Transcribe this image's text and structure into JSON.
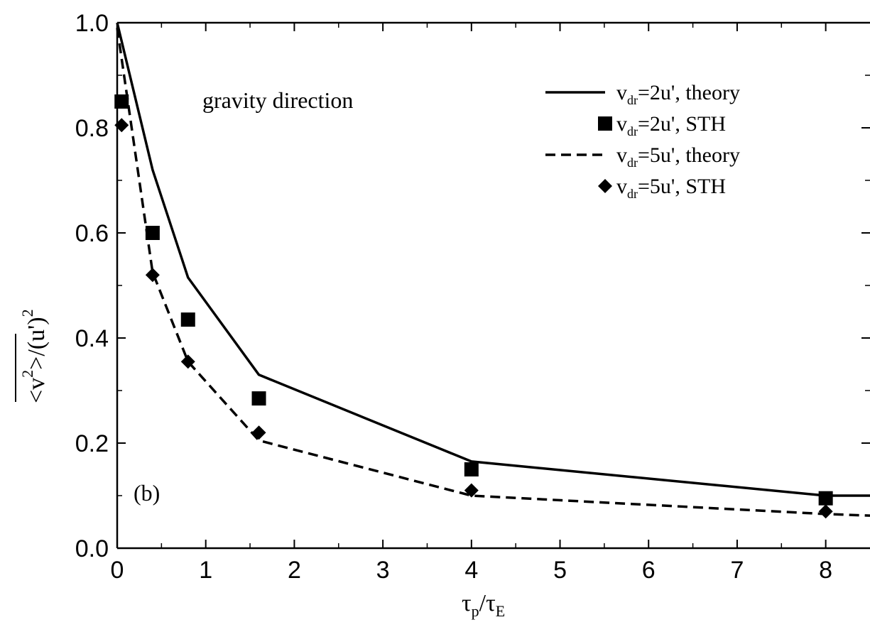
{
  "chart_data": {
    "type": "line",
    "annotation_direction": "gravity direction",
    "panel_label": "(b)",
    "xlabel": {
      "main": "τ",
      "sub1": "p",
      "slash": "/τ",
      "sub2": "E"
    },
    "ylabel": {
      "open": "<v",
      "exp1": "2",
      "close": ">/(u')",
      "exp2": "2"
    },
    "xlim": [
      0,
      8.5
    ],
    "ylim": [
      0,
      1.0
    ],
    "xticks": [
      0,
      1,
      2,
      3,
      4,
      5,
      6,
      7,
      8
    ],
    "yticks": [
      0.0,
      0.2,
      0.4,
      0.6,
      0.8,
      1.0
    ],
    "ytick_labels": [
      "0.0",
      "0.2",
      "0.4",
      "0.6",
      "0.8",
      "1.0"
    ],
    "grid": false,
    "legend_position": "top-right",
    "series": [
      {
        "name": "vdr=2u', theory",
        "legend": {
          "pre": "v",
          "sub": "dr",
          "post": "=2u', theory"
        },
        "style": "solid-line",
        "x": [
          0.0,
          0.4,
          0.8,
          1.6,
          4.0,
          8.0,
          8.5
        ],
        "y": [
          1.0,
          0.72,
          0.515,
          0.33,
          0.165,
          0.1,
          0.1
        ]
      },
      {
        "name": "vdr=2u', STH",
        "legend": {
          "pre": "v",
          "sub": "dr",
          "post": "=2u', STH"
        },
        "style": "square-marker",
        "x": [
          0.05,
          0.4,
          0.8,
          1.6,
          4.0,
          8.0
        ],
        "y": [
          0.85,
          0.6,
          0.435,
          0.285,
          0.15,
          0.095
        ]
      },
      {
        "name": "vdr=5u', theory",
        "legend": {
          "pre": "v",
          "sub": "dr",
          "post": "=5u', theory"
        },
        "style": "dashed-line",
        "x": [
          0.0,
          0.4,
          0.8,
          1.6,
          4.0,
          8.0,
          8.5
        ],
        "y": [
          0.99,
          0.525,
          0.355,
          0.205,
          0.1,
          0.065,
          0.062
        ]
      },
      {
        "name": "vdr=5u', STH",
        "legend": {
          "pre": "v",
          "sub": "dr",
          "post": "=5u', STH"
        },
        "style": "diamond-marker",
        "x": [
          0.05,
          0.4,
          0.8,
          1.6,
          4.0,
          8.0
        ],
        "y": [
          0.805,
          0.52,
          0.355,
          0.22,
          0.11,
          0.07
        ]
      }
    ]
  }
}
